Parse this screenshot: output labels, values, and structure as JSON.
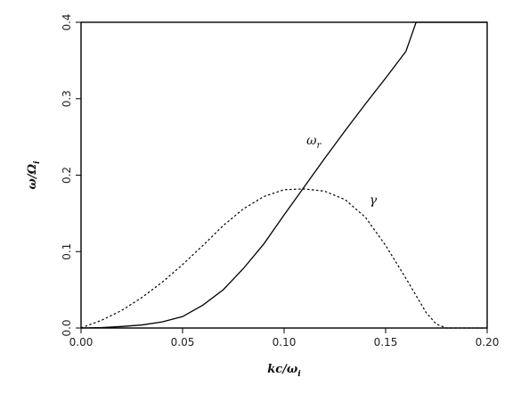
{
  "chart_data": {
    "type": "line",
    "xlabel": "kc/ω_i",
    "ylabel": "ω/Ω_i",
    "xlim": [
      0.0,
      0.2
    ],
    "ylim": [
      0.0,
      0.4
    ],
    "xticks": [
      "0.00",
      "0.05",
      "0.10",
      "0.15",
      "0.20"
    ],
    "yticks": [
      "0.0",
      "0.1",
      "0.2",
      "0.3",
      "0.4"
    ],
    "grid": false,
    "legend": "none",
    "series": [
      {
        "name": "ω_r",
        "style": "solid",
        "x": [
          0.0,
          0.01,
          0.02,
          0.03,
          0.04,
          0.05,
          0.06,
          0.07,
          0.08,
          0.09,
          0.1,
          0.11,
          0.12,
          0.13,
          0.14,
          0.15,
          0.16,
          0.165,
          0.2
        ],
        "y": [
          0.0,
          0.0005,
          0.002,
          0.004,
          0.008,
          0.015,
          0.03,
          0.05,
          0.078,
          0.11,
          0.148,
          0.185,
          0.222,
          0.258,
          0.293,
          0.327,
          0.362,
          0.4,
          0.4
        ]
      },
      {
        "name": "γ",
        "style": "dashed",
        "x": [
          0.0,
          0.01,
          0.02,
          0.03,
          0.04,
          0.05,
          0.06,
          0.07,
          0.08,
          0.09,
          0.1,
          0.11,
          0.12,
          0.13,
          0.14,
          0.15,
          0.16,
          0.17,
          0.175,
          0.18,
          0.19,
          0.2
        ],
        "y": [
          0.0,
          0.01,
          0.023,
          0.04,
          0.06,
          0.083,
          0.108,
          0.134,
          0.156,
          0.172,
          0.181,
          0.182,
          0.179,
          0.168,
          0.145,
          0.108,
          0.065,
          0.02,
          0.005,
          0.0,
          0.0,
          0.0
        ]
      }
    ],
    "annotations": [
      {
        "text": "ω_r",
        "x": 0.111,
        "y": 0.24
      },
      {
        "text": "γ",
        "x": 0.142,
        "y": 0.162
      }
    ]
  }
}
